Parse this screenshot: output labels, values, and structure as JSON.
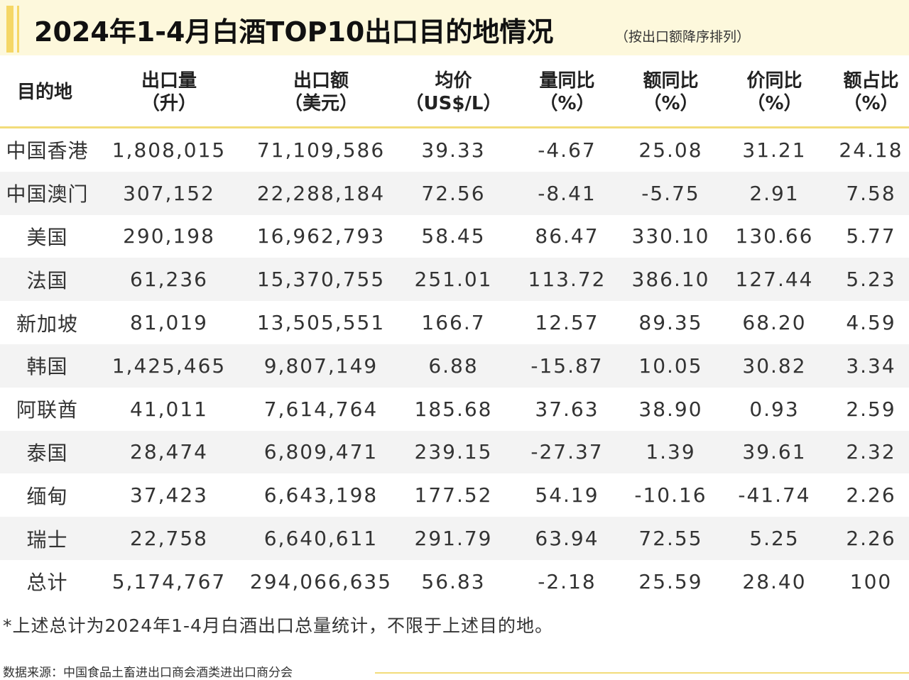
{
  "title": "2024年1-4月白酒TOP10出口目的地情况",
  "subtitle": "（按出口额降序排列）",
  "colors": {
    "accent": "#f5d766",
    "title_bg": "#fdf8dc",
    "row_shade": "#f3f3f3"
  },
  "headers": [
    {
      "line1": "目的地",
      "line2": ""
    },
    {
      "line1": "出口量",
      "line2": "（升）"
    },
    {
      "line1": "出口额",
      "line2": "（美元）"
    },
    {
      "line1": "均价",
      "line2": "（US$/L）"
    },
    {
      "line1": "量同比",
      "line2": "（%）"
    },
    {
      "line1": "额同比",
      "line2": "（%）"
    },
    {
      "line1": "价同比",
      "line2": "（%）"
    },
    {
      "line1": "额占比",
      "line2": "（%）"
    }
  ],
  "rows": [
    [
      "中国香港",
      "1,808,015",
      "71,109,586",
      "39.33",
      "-4.67",
      "25.08",
      "31.21",
      "24.18"
    ],
    [
      "中国澳门",
      "307,152",
      "22,288,184",
      "72.56",
      "-8.41",
      "-5.75",
      "2.91",
      "7.58"
    ],
    [
      "美国",
      "290,198",
      "16,962,793",
      "58.45",
      "86.47",
      "330.10",
      "130.66",
      "5.77"
    ],
    [
      "法国",
      "61,236",
      "15,370,755",
      "251.01",
      "113.72",
      "386.10",
      "127.44",
      "5.23"
    ],
    [
      "新加坡",
      "81,019",
      "13,505,551",
      "166.7",
      "12.57",
      "89.35",
      "68.20",
      "4.59"
    ],
    [
      "韩国",
      "1,425,465",
      "9,807,149",
      "6.88",
      "-15.87",
      "10.05",
      "30.82",
      "3.34"
    ],
    [
      "阿联酋",
      "41,011",
      "7,614,764",
      "185.68",
      "37.63",
      "38.90",
      "0.93",
      "2.59"
    ],
    [
      "泰国",
      "28,474",
      "6,809,471",
      "239.15",
      "-27.37",
      "1.39",
      "39.61",
      "2.32"
    ],
    [
      "缅甸",
      "37,423",
      "6,643,198",
      "177.52",
      "54.19",
      "-10.16",
      "-41.74",
      "2.26"
    ],
    [
      "瑞士",
      "22,758",
      "6,640,611",
      "291.79",
      "63.94",
      "72.55",
      "5.25",
      "2.26"
    ],
    [
      "总计",
      "5,174,767",
      "294,066,635",
      "56.83",
      "-2.18",
      "25.59",
      "28.40",
      "100"
    ]
  ],
  "footnote": "*上述总计为2024年1-4月白酒出口总量统计，不限于上述目的地。",
  "source": "数据来源：中国食品土畜进出口商会酒类进出口商分会"
}
